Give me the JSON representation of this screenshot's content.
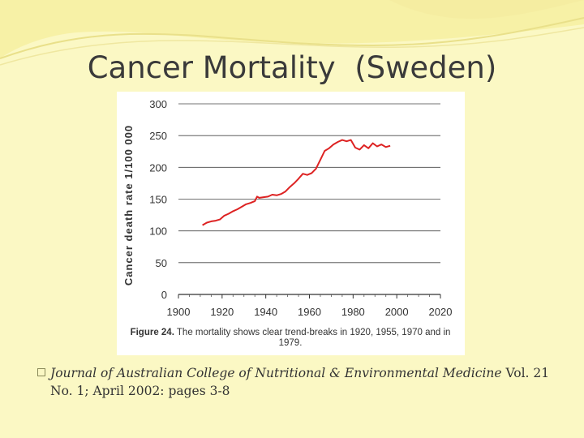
{
  "slide": {
    "title": "Cancer Mortality  (Sweden)",
    "citation_journal": "Journal of Australian College of Nutritional & Environmental Medicine",
    "citation_rest": " Vol. 21 No. 1; April 2002: pages 3-8",
    "bullet_icon": "square-bullet-icon"
  },
  "chart_data": {
    "type": "line",
    "ylabel": "Cancer death rate 1/100 000",
    "xlabel": "",
    "xlim": [
      1900,
      2020
    ],
    "ylim": [
      0,
      300
    ],
    "x_ticks": [
      "1900",
      "1920",
      "1940",
      "1960",
      "1980",
      "2000",
      "2020"
    ],
    "y_ticks": [
      "0",
      "50",
      "100",
      "150",
      "200",
      "250",
      "300"
    ],
    "grid": "horizontal",
    "caption_label": "Figure 24.",
    "caption_text": " The mortality shows clear trend-breaks in 1920, 1955, 1970 and in 1979.",
    "series": [
      {
        "color": "#dd2222",
        "x": [
          1911,
          1913,
          1915,
          1917,
          1919,
          1921,
          1923,
          1925,
          1927,
          1929,
          1931,
          1933,
          1935,
          1936,
          1937,
          1939,
          1941,
          1943,
          1945,
          1947,
          1949,
          1951,
          1953,
          1955,
          1957,
          1959,
          1961,
          1963,
          1965,
          1967,
          1969,
          1971,
          1973,
          1975,
          1977,
          1979,
          1981,
          1983,
          1985,
          1987,
          1989,
          1991,
          1993,
          1995,
          1997
        ],
        "y": [
          109,
          113,
          115,
          116,
          118,
          124,
          127,
          131,
          134,
          138,
          142,
          144,
          147,
          154,
          152,
          153,
          154,
          157,
          156,
          158,
          162,
          169,
          175,
          182,
          190,
          188,
          191,
          198,
          212,
          226,
          230,
          236,
          240,
          243,
          241,
          243,
          231,
          228,
          235,
          230,
          238,
          233,
          236,
          232,
          234
        ]
      }
    ]
  }
}
